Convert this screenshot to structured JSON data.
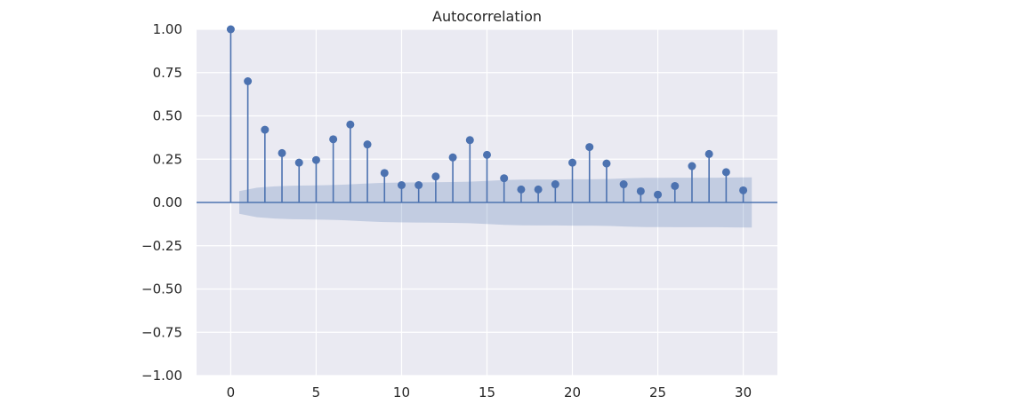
{
  "chart_data": {
    "type": "stem",
    "title": "Autocorrelation",
    "xlabel": "",
    "ylabel": "",
    "x": [
      0,
      1,
      2,
      3,
      4,
      5,
      6,
      7,
      8,
      9,
      10,
      11,
      12,
      13,
      14,
      15,
      16,
      17,
      18,
      19,
      20,
      21,
      22,
      23,
      24,
      25,
      26,
      27,
      28,
      29,
      30
    ],
    "values": [
      1.0,
      0.7,
      0.42,
      0.285,
      0.23,
      0.245,
      0.365,
      0.45,
      0.335,
      0.17,
      0.1,
      0.1,
      0.15,
      0.26,
      0.36,
      0.275,
      0.14,
      0.075,
      0.075,
      0.105,
      0.23,
      0.32,
      0.225,
      0.105,
      0.065,
      0.045,
      0.095,
      0.21,
      0.28,
      0.175,
      0.07
    ],
    "confidence_band": {
      "x_range": [
        0.5,
        30.5
      ],
      "upper": [
        0.065,
        0.085,
        0.093,
        0.097,
        0.098,
        0.1,
        0.103,
        0.108,
        0.113,
        0.115,
        0.116,
        0.117,
        0.118,
        0.12,
        0.124,
        0.13,
        0.132,
        0.133,
        0.133,
        0.134,
        0.134,
        0.136,
        0.14,
        0.142,
        0.142,
        0.143,
        0.143,
        0.143,
        0.144,
        0.145
      ],
      "color": "#4c72b0"
    },
    "xlim": [
      -2,
      32
    ],
    "ylim": [
      -1.0,
      1.0
    ],
    "xticks": [
      0,
      5,
      10,
      15,
      20,
      25,
      30
    ],
    "xtick_labels": [
      "0",
      "5",
      "10",
      "15",
      "20",
      "25",
      "30"
    ],
    "yticks": [
      1.0,
      0.75,
      0.5,
      0.25,
      0.0,
      -0.25,
      -0.5,
      -0.75,
      -1.0
    ],
    "ytick_labels": [
      "1.00",
      "0.75",
      "0.50",
      "0.25",
      "0.00",
      "−0.25",
      "−0.50",
      "−0.75",
      "−1.00"
    ],
    "grid": true,
    "colors": {
      "stem": "#4c72b0",
      "background": "#eaeaf2",
      "grid": "#ffffff"
    }
  }
}
